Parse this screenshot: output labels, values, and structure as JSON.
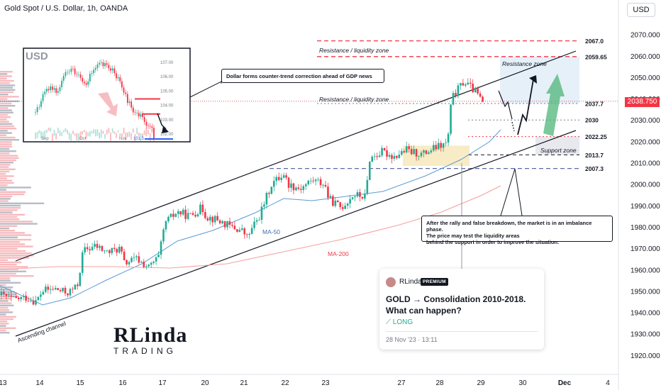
{
  "header": {
    "symbol_title": "Gold Spot / U.S. Dollar, 1h, OANDA",
    "currency_button": "USD",
    "last_price": "2038.750"
  },
  "colors": {
    "bull": "#22ab94",
    "bear": "#f23645",
    "ma50": "#5b9bd5",
    "ma200": "#f7a1a1",
    "channel": "#131722",
    "resistance": "#f23645",
    "support": "#5a6aa8"
  },
  "chart_data": {
    "type": "candlestick",
    "y_axis": {
      "ticks": [
        "2070.000",
        "2060.000",
        "2050.000",
        "2040.000",
        "2030.000",
        "2020.000",
        "2010.000",
        "2000.000",
        "1990.000",
        "1980.000",
        "1970.000",
        "1960.000",
        "1950.000",
        "1940.000",
        "1930.000",
        "1920.000"
      ],
      "range": [
        1915,
        2075
      ]
    },
    "x_axis": {
      "ticks": [
        "13",
        "14",
        "15",
        "16",
        "17",
        "20",
        "21",
        "22",
        "23",
        "27",
        "28",
        "29",
        "30",
        "Dec",
        "4"
      ]
    },
    "levels": [
      {
        "value": 2067.0,
        "label": "2067.0",
        "style": "red-dashed"
      },
      {
        "value": 2059.65,
        "label": "2059.65",
        "style": "red-dashed"
      },
      {
        "value": 2037.7,
        "label": "2037.7",
        "style": "gray-dotted"
      },
      {
        "value": 2030.0,
        "label": "2030",
        "style": "gray-dotted"
      },
      {
        "value": 2022.25,
        "label": "2022.25",
        "style": "red-dotted"
      },
      {
        "value": 2013.7,
        "label": "2013.7",
        "style": "dark-dashed"
      },
      {
        "value": 2007.3,
        "label": "2007.3",
        "style": "blue-dashed"
      }
    ],
    "close_path": [
      [
        0,
        1948
      ],
      [
        0.3,
        1946
      ],
      [
        0.6,
        1947
      ],
      [
        0.85,
        1945
      ],
      [
        1.0,
        1950
      ],
      [
        1.3,
        1951
      ],
      [
        1.6,
        1949
      ],
      [
        1.85,
        1952
      ],
      [
        2.0,
        1969
      ],
      [
        2.3,
        1971
      ],
      [
        2.6,
        1968
      ],
      [
        2.9,
        1970
      ],
      [
        3.0,
        1963
      ],
      [
        3.3,
        1965
      ],
      [
        3.6,
        1961
      ],
      [
        3.85,
        1966
      ],
      [
        4.0,
        1982
      ],
      [
        4.3,
        1987
      ],
      [
        4.6,
        1985
      ],
      [
        4.9,
        1989
      ],
      [
        5.0,
        1985
      ],
      [
        5.3,
        1983
      ],
      [
        5.6,
        1980
      ],
      [
        5.9,
        1978
      ],
      [
        6.0,
        1975
      ],
      [
        6.3,
        1985
      ],
      [
        6.6,
        2000
      ],
      [
        6.9,
        2005
      ],
      [
        7.0,
        2000
      ],
      [
        7.3,
        1998
      ],
      [
        7.6,
        2002
      ],
      [
        7.9,
        2000
      ],
      [
        8.0,
        1993
      ],
      [
        8.3,
        1989
      ],
      [
        8.6,
        1995
      ],
      [
        8.9,
        1994
      ],
      [
        9.0,
        2012
      ],
      [
        9.3,
        2015
      ],
      [
        9.6,
        2013
      ],
      [
        9.9,
        2016
      ],
      [
        10.0,
        2015
      ],
      [
        10.3,
        2014
      ],
      [
        10.6,
        2017
      ],
      [
        10.9,
        2019
      ],
      [
        11.0,
        2040
      ],
      [
        11.3,
        2048
      ],
      [
        11.6,
        2043
      ],
      [
        11.8,
        2037
      ]
    ],
    "ma50_label": "MA-50",
    "ma200_label": "MA-200",
    "zones": [
      {
        "label": "Resistance / liquidity zone",
        "level": 2067.0
      },
      {
        "label": "Resistance / liquidity zone",
        "level": 2037.7
      },
      {
        "label": "Resistance zone",
        "level": 2059.65
      },
      {
        "label": "Support zone",
        "level": 2013.7
      }
    ],
    "channel_label": "Ascending channel",
    "annotations": [
      "Dollar forms counter-trend correction ahead of GDP news",
      "After the rally and false breakdown, the market is in an imbalance phase.",
      "The price may test the liquidity areas",
      "behind the support in order to improve the situation."
    ]
  },
  "inset": {
    "title": "USD",
    "y_ticks": [
      "107.00",
      "106.00",
      "105.00",
      "104.00",
      "103.00",
      "102.00"
    ],
    "x_ticks": [
      "Sep",
      "Oct",
      "Nov"
    ],
    "price_tag": "101.5"
  },
  "idea_card": {
    "author": "RLinda",
    "badge": "PREMIUM",
    "title": "GOLD → Consolidation 2010-2018. What can happen?",
    "direction": "LONG",
    "date": "28 Nov '23 · 13:11"
  },
  "logo": {
    "line1": "RLinda",
    "line2": "TRADING"
  }
}
